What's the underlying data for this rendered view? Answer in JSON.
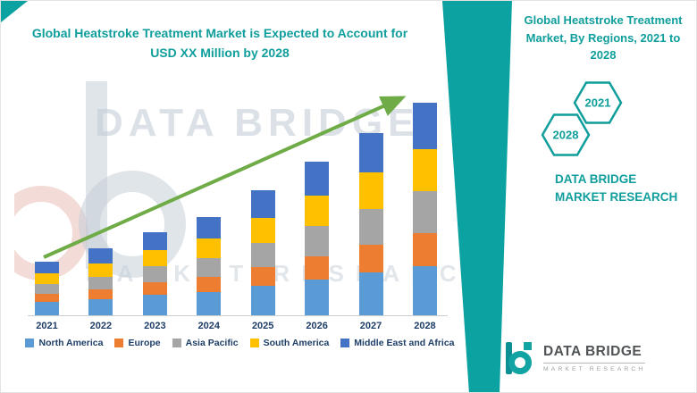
{
  "colors": {
    "teal": "#0FA09E",
    "arrow_green": "#6FAC47",
    "axis_text": "#1E3E67",
    "watermark_gray": "#BFC9D4"
  },
  "header": {
    "right_title": "Global Heatstroke Treatment Market, By Regions, 2021 to 2028"
  },
  "hexagons": [
    {
      "label": "2028"
    },
    {
      "label": "2021"
    }
  ],
  "right_panel": {
    "brand_caption": "DATA BRIDGE MARKET RESEARCH"
  },
  "logo": {
    "name": "DATA BRIDGE",
    "tagline": "MARKET RESEARCH"
  },
  "watermark": {
    "line1": "DATA BRIDGE",
    "line2": "MARKET RESEARCH"
  },
  "chart_data": {
    "type": "bar",
    "stacked": true,
    "title": "Global Heatstroke Treatment Market is Expected to Account for USD XX Million by 2028",
    "categories": [
      "2021",
      "2022",
      "2023",
      "2024",
      "2025",
      "2026",
      "2027",
      "2028"
    ],
    "series": [
      {
        "name": "North America",
        "color": "#5B9BD5",
        "values": [
          15,
          18,
          23,
          26,
          33,
          40,
          48,
          55
        ]
      },
      {
        "name": "Europe",
        "color": "#ED7D31",
        "values": [
          9,
          11,
          14,
          17,
          21,
          26,
          31,
          37
        ]
      },
      {
        "name": "Asia Pacific",
        "color": "#A5A5A5",
        "values": [
          11,
          14,
          18,
          21,
          27,
          34,
          40,
          47
        ]
      },
      {
        "name": "South America",
        "color": "#FFC000",
        "values": [
          12,
          15,
          18,
          22,
          28,
          34,
          41,
          47
        ]
      },
      {
        "name": "Middle East and Africa",
        "color": "#4472C4",
        "values": [
          13,
          17,
          20,
          24,
          31,
          38,
          44,
          52
        ]
      }
    ],
    "xlabel": "",
    "ylabel": "",
    "ylim": [
      0,
      250
    ],
    "units": "index units (no y-axis shown; segment values estimated from bar heights)",
    "legend_position": "bottom",
    "annotations": [
      "upward green trend arrow across bars"
    ]
  }
}
